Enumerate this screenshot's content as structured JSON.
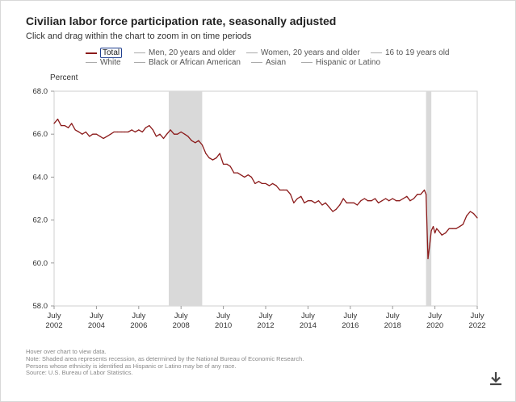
{
  "header": {
    "title": "Civilian labor force participation rate, seasonally adjusted",
    "subtitle": "Click and drag within the chart to zoom in on time periods"
  },
  "legend": {
    "items": [
      {
        "label": "Total",
        "active": true
      },
      {
        "label": "Men, 20 years and older",
        "active": false
      },
      {
        "label": "Women, 20 years and older",
        "active": false
      },
      {
        "label": "16 to 19 years old",
        "active": false
      },
      {
        "label": "White",
        "active": false
      },
      {
        "label": "Black or African American",
        "active": false
      },
      {
        "label": "Asian",
        "active": false
      },
      {
        "label": "Hispanic or Latino",
        "active": false
      }
    ]
  },
  "notes": [
    "Hover over chart to view data.",
    "Note: Shaded area represents recession, as determined by the National Bureau of Economic Research.",
    "Persons whose ethnicity is identified as Hispanic or Latino may be of any race.",
    "Source: U.S. Bureau of Labor Statistics."
  ],
  "icons": {
    "download": "download-icon"
  },
  "colors": {
    "line": "#8b1a1a",
    "recession": "#d9d9d9",
    "active_border": "#1f3f8f"
  },
  "chart_data": {
    "type": "line",
    "title": "Civilian labor force participation rate, seasonally adjusted",
    "ylabel": "Percent",
    "xlabel": "",
    "ylim": [
      58.0,
      68.0
    ],
    "yticks": [
      "68.0",
      "66.0",
      "64.0",
      "62.0",
      "60.0",
      "58.0"
    ],
    "xlim": [
      2002.5,
      2022.5
    ],
    "xticks": [
      {
        "line1": "July",
        "line2": "2002"
      },
      {
        "line1": "July",
        "line2": "2004"
      },
      {
        "line1": "July",
        "line2": "2006"
      },
      {
        "line1": "July",
        "line2": "2008"
      },
      {
        "line1": "July",
        "line2": "2010"
      },
      {
        "line1": "July",
        "line2": "2012"
      },
      {
        "line1": "July",
        "line2": "2014"
      },
      {
        "line1": "July",
        "line2": "2016"
      },
      {
        "line1": "July",
        "line2": "2018"
      },
      {
        "line1": "July",
        "line2": "2020"
      },
      {
        "line1": "July",
        "line2": "2022"
      }
    ],
    "recessions": [
      [
        2007.92,
        2009.5
      ],
      [
        2020.08,
        2020.33
      ]
    ],
    "series": [
      {
        "name": "Total",
        "x": [
          2002.5,
          2002.67,
          2002.83,
          2003.0,
          2003.17,
          2003.33,
          2003.5,
          2003.67,
          2003.83,
          2004.0,
          2004.17,
          2004.33,
          2004.5,
          2004.67,
          2004.83,
          2005.0,
          2005.17,
          2005.33,
          2005.5,
          2005.67,
          2005.83,
          2006.0,
          2006.17,
          2006.33,
          2006.5,
          2006.67,
          2006.83,
          2007.0,
          2007.17,
          2007.33,
          2007.5,
          2007.67,
          2007.83,
          2008.0,
          2008.17,
          2008.33,
          2008.5,
          2008.67,
          2008.83,
          2009.0,
          2009.17,
          2009.33,
          2009.5,
          2009.67,
          2009.83,
          2010.0,
          2010.17,
          2010.33,
          2010.5,
          2010.67,
          2010.83,
          2011.0,
          2011.17,
          2011.33,
          2011.5,
          2011.67,
          2011.83,
          2012.0,
          2012.17,
          2012.33,
          2012.5,
          2012.67,
          2012.83,
          2013.0,
          2013.17,
          2013.33,
          2013.5,
          2013.67,
          2013.83,
          2014.0,
          2014.17,
          2014.33,
          2014.5,
          2014.67,
          2014.83,
          2015.0,
          2015.17,
          2015.33,
          2015.5,
          2015.67,
          2015.83,
          2016.0,
          2016.17,
          2016.33,
          2016.5,
          2016.67,
          2016.83,
          2017.0,
          2017.17,
          2017.33,
          2017.5,
          2017.67,
          2017.83,
          2018.0,
          2018.17,
          2018.33,
          2018.5,
          2018.67,
          2018.83,
          2019.0,
          2019.17,
          2019.33,
          2019.5,
          2019.67,
          2019.83,
          2020.0,
          2020.08,
          2020.17,
          2020.25,
          2020.33,
          2020.42,
          2020.5,
          2020.58,
          2020.67,
          2020.83,
          2021.0,
          2021.17,
          2021.33,
          2021.5,
          2021.67,
          2021.83,
          2022.0,
          2022.17,
          2022.33,
          2022.5
        ],
        "values": [
          66.5,
          66.7,
          66.4,
          66.4,
          66.3,
          66.5,
          66.2,
          66.1,
          66.0,
          66.1,
          65.9,
          66.0,
          66.0,
          65.9,
          65.8,
          65.9,
          66.0,
          66.1,
          66.1,
          66.1,
          66.1,
          66.1,
          66.2,
          66.1,
          66.2,
          66.1,
          66.3,
          66.4,
          66.2,
          65.9,
          66.0,
          65.8,
          66.0,
          66.2,
          66.0,
          66.0,
          66.1,
          66.0,
          65.9,
          65.7,
          65.6,
          65.7,
          65.5,
          65.1,
          64.9,
          64.8,
          64.9,
          65.1,
          64.6,
          64.6,
          64.5,
          64.2,
          64.2,
          64.1,
          64.0,
          64.1,
          64.0,
          63.7,
          63.8,
          63.7,
          63.7,
          63.6,
          63.7,
          63.6,
          63.4,
          63.4,
          63.4,
          63.2,
          62.8,
          63.0,
          63.1,
          62.8,
          62.9,
          62.9,
          62.8,
          62.9,
          62.7,
          62.8,
          62.6,
          62.4,
          62.5,
          62.7,
          63.0,
          62.8,
          62.8,
          62.8,
          62.7,
          62.9,
          63.0,
          62.9,
          62.9,
          63.0,
          62.8,
          62.9,
          63.0,
          62.9,
          63.0,
          62.9,
          62.9,
          63.0,
          63.1,
          62.9,
          63.0,
          63.2,
          63.2,
          63.4,
          63.2,
          60.2,
          60.8,
          61.5,
          61.7,
          61.4,
          61.6,
          61.5,
          61.3,
          61.4,
          61.6,
          61.6,
          61.6,
          61.7,
          61.8,
          62.2,
          62.4,
          62.3,
          62.1
        ]
      }
    ]
  }
}
